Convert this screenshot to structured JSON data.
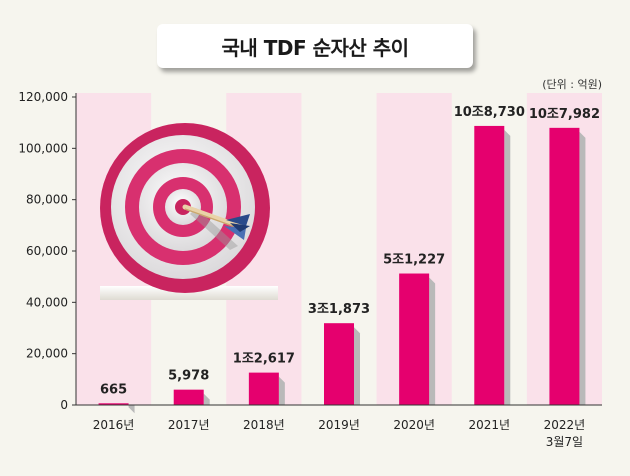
{
  "chart_data": {
    "type": "bar",
    "title": "국내 TDF 순자산 추이",
    "unit_note": "(단위 : 억원)",
    "categories": [
      "2016년",
      "2017년",
      "2018년",
      "2019년",
      "2020년",
      "2021년",
      "2022년\n3월7일"
    ],
    "values": [
      665,
      5978,
      12617,
      31873,
      51227,
      108730,
      107982
    ],
    "data_labels": [
      "665",
      "5,978",
      "1조2,617",
      "3조1,873",
      "5조1,227",
      "10조8,730",
      "10조7,982"
    ],
    "y_ticks": [
      "0",
      "20,000",
      "40,000",
      "60,000",
      "80,000",
      "100,000",
      "120,000"
    ],
    "ylim": [
      0,
      120000
    ],
    "xlabel": "",
    "ylabel": "",
    "grid": false,
    "colors": {
      "bar": "#e5006e",
      "bar_shadow": "#b9b9b9",
      "band": "#fae1ea",
      "background": "#f6f5ee",
      "axis": "#333333",
      "target_outer": "#c9245f",
      "target_ring_light": "#f0eef0",
      "arrow_fletch": "#2a4a8a"
    },
    "decoration_icon": "target-with-arrow-icon"
  }
}
